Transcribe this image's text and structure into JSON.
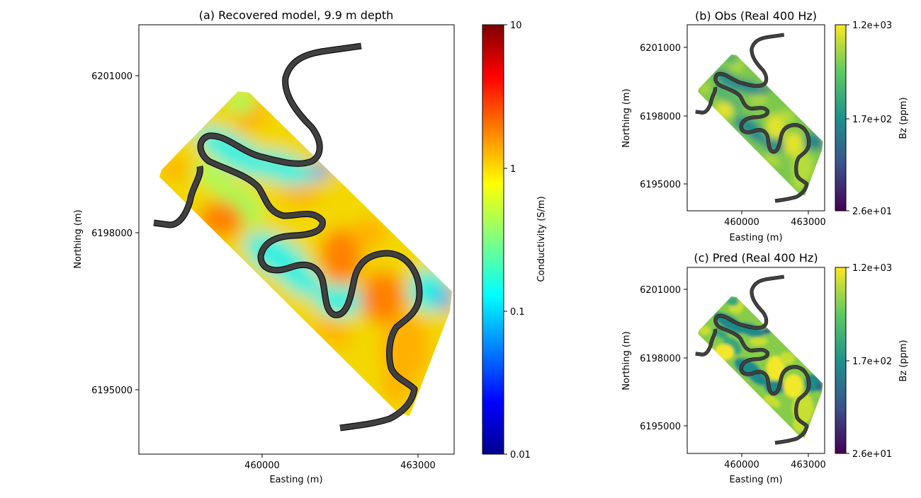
{
  "chart_data": [
    {
      "type": "heatmap",
      "title": "(a) Recovered model, 9.9 m depth",
      "xlabel": "Easting (m)",
      "ylabel": "Northing (m)",
      "xticks": [
        "460000",
        "463000"
      ],
      "yticks": [
        "6201000",
        "6198000",
        "6195000"
      ],
      "xlim": [
        457600,
        463700
      ],
      "ylim": [
        6193800,
        6202000
      ],
      "colormap": "jet",
      "colorbar": {
        "label": "Conductivity (S/m)",
        "scale": "log",
        "range": [
          0.01,
          10
        ],
        "ticks": [
          "10",
          "1",
          "0.1",
          "0.01"
        ]
      },
      "overlay": "river outline (black)"
    },
    {
      "type": "heatmap",
      "title": "(b) Obs (Real 400 Hz)",
      "xlabel": "Easting (m)",
      "ylabel": "Northing (m)",
      "xticks": [
        "460000",
        "463000"
      ],
      "yticks": [
        "6201000",
        "6198000",
        "6195000"
      ],
      "colormap": "viridis",
      "colorbar": {
        "label": "Bz (ppm)",
        "scale": "log",
        "range": [
          26,
          1200
        ],
        "ticks": [
          "1.2e+03",
          "1.7e+02",
          "2.6e+01"
        ]
      }
    },
    {
      "type": "heatmap",
      "title": "(c) Pred (Real 400 Hz)",
      "xlabel": "Easting (m)",
      "ylabel": "Northing (m)",
      "xticks": [
        "460000",
        "463000"
      ],
      "yticks": [
        "6201000",
        "6198000",
        "6195000"
      ],
      "colormap": "viridis",
      "colorbar": {
        "label": "Bz (ppm)",
        "scale": "log",
        "range": [
          26,
          1200
        ],
        "ticks": [
          "1.2e+03",
          "1.7e+02",
          "2.6e+01"
        ]
      }
    }
  ]
}
